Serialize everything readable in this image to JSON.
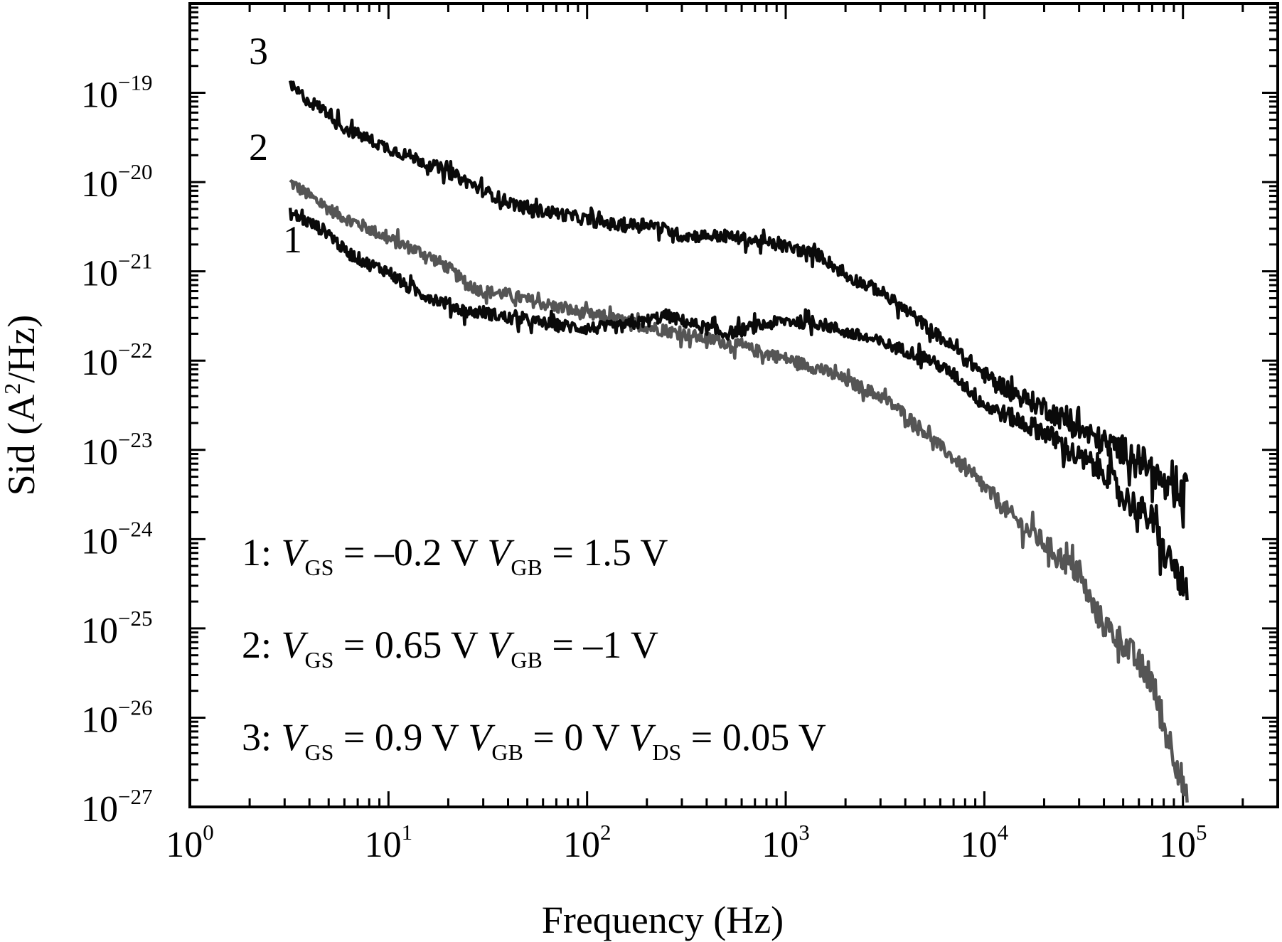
{
  "chart_data": {
    "type": "line",
    "xscale": "log",
    "yscale": "log",
    "xlabel": "Frequency (Hz)",
    "ylabel": {
      "base": "Sid (A",
      "sup": "2",
      "tail": "/Hz)"
    },
    "xlim": [
      1,
      300000
    ],
    "ylim": [
      1e-27,
      1e-18
    ],
    "xticks": [
      {
        "value": 1,
        "base": "10",
        "exp": "0"
      },
      {
        "value": 10,
        "base": "10",
        "exp": "1"
      },
      {
        "value": 100,
        "base": "10",
        "exp": "2"
      },
      {
        "value": 1000,
        "base": "10",
        "exp": "3"
      },
      {
        "value": 10000,
        "base": "10",
        "exp": "4"
      },
      {
        "value": 100000,
        "base": "10",
        "exp": "5"
      }
    ],
    "yticks": [
      {
        "value": 1e-19,
        "base": "10",
        "exp": "−19"
      },
      {
        "value": 1e-20,
        "base": "10",
        "exp": "−20"
      },
      {
        "value": 1e-21,
        "base": "10",
        "exp": "−21"
      },
      {
        "value": 1e-22,
        "base": "10",
        "exp": "−22"
      },
      {
        "value": 1e-23,
        "base": "10",
        "exp": "−23"
      },
      {
        "value": 1e-24,
        "base": "10",
        "exp": "−24"
      },
      {
        "value": 1e-25,
        "base": "10",
        "exp": "−25"
      },
      {
        "value": 1e-26,
        "base": "10",
        "exp": "−26"
      },
      {
        "value": 1e-27,
        "base": "10",
        "exp": "−27"
      }
    ],
    "grid": false,
    "series": [
      {
        "label": "1",
        "color": "#0a0a0a",
        "x": [
          3.2,
          4,
          5,
          6,
          8,
          10,
          12,
          15,
          20,
          25,
          30,
          40,
          50,
          70,
          100,
          150,
          200,
          250,
          300,
          400,
          500,
          700,
          1000,
          1500,
          2000,
          3000,
          5000,
          7000,
          10000,
          15000,
          20000,
          30000,
          40000,
          50000,
          60000,
          70000,
          80000,
          90000,
          100000,
          105000
        ],
        "y": [
          4.5e-21,
          3.5e-21,
          2.7e-21,
          1.7e-21,
          1.2e-21,
          1e-21,
          7e-22,
          5.5e-22,
          4.3e-22,
          3.5e-22,
          3.5e-22,
          3e-22,
          2.8e-22,
          2.5e-22,
          2.3e-22,
          2.4e-22,
          2.8e-22,
          3.2e-22,
          2.8e-22,
          2.3e-22,
          2e-22,
          2.4e-22,
          2.8e-22,
          2.6e-22,
          2.1e-22,
          1.6e-22,
          1.1e-22,
          7e-23,
          3.2e-23,
          2.1e-23,
          1.6e-23,
          8e-24,
          6e-24,
          3e-24,
          2.2e-24,
          1.6e-24,
          7e-25,
          5e-25,
          3e-25,
          2.2e-25
        ]
      },
      {
        "label": "2",
        "color": "#555555",
        "x": [
          3.2,
          4,
          5,
          6,
          8,
          10,
          15,
          20,
          25,
          30,
          40,
          50,
          70,
          100,
          150,
          200,
          300,
          500,
          700,
          1000,
          1500,
          2000,
          3000,
          4000,
          5000,
          7000,
          10000,
          15000,
          20000,
          30000,
          35000,
          40000,
          50000,
          60000,
          70000,
          80000,
          90000,
          100000,
          105000
        ],
        "y": [
          1e-20,
          7e-21,
          5e-21,
          4e-21,
          3e-21,
          2.3e-21,
          1.6e-21,
          1.1e-21,
          7e-22,
          6e-22,
          5.5e-22,
          4.8e-22,
          4e-22,
          3.3e-22,
          2.8e-22,
          2.4e-22,
          2e-22,
          1.6e-22,
          1.3e-22,
          1.05e-22,
          8e-23,
          6e-23,
          4e-23,
          2.5e-23,
          1.6e-23,
          8e-24,
          3.8e-24,
          1.5e-24,
          9e-25,
          4e-25,
          1.8e-25,
          1.1e-25,
          7e-26,
          4e-26,
          2.5e-26,
          8e-27,
          4e-27,
          1.8e-27,
          1e-27
        ]
      },
      {
        "label": "3",
        "color": "#0a0a0a",
        "x": [
          3.2,
          4,
          5,
          6,
          8,
          10,
          15,
          20,
          25,
          30,
          40,
          50,
          70,
          100,
          150,
          200,
          300,
          500,
          700,
          1000,
          1500,
          2000,
          3000,
          5000,
          7000,
          10000,
          15000,
          20000,
          30000,
          40000,
          50000,
          60000,
          70000,
          80000,
          90000,
          100000,
          105000
        ],
        "y": [
          1.2e-19,
          8e-20,
          6e-20,
          4e-20,
          3e-20,
          2.4e-20,
          1.7e-20,
          1.3e-20,
          1e-20,
          8e-21,
          6e-21,
          5e-21,
          4.5e-21,
          3.8e-21,
          3.2e-21,
          3.5e-21,
          2.5e-21,
          2.5e-21,
          2.2e-21,
          1.9e-21,
          1.5e-21,
          9e-22,
          6e-22,
          2.5e-22,
          1.4e-22,
          7e-23,
          4e-23,
          3e-23,
          1.7e-23,
          1.2e-23,
          1e-23,
          8e-24,
          6e-24,
          4e-24,
          2.8e-24,
          3e-24,
          5e-24
        ]
      }
    ],
    "legend": {
      "placement": "bottom-left",
      "lines": [
        {
          "prefix": "1:",
          "items": [
            {
              "sym": "V",
              "sub": "GS",
              "val": " = –0.2 V"
            },
            {
              "sym": "V",
              "sub": "GB",
              "val": " = 1.5 V"
            }
          ]
        },
        {
          "prefix": "2:",
          "items": [
            {
              "sym": "V",
              "sub": "GS",
              "val": " = 0.65 V"
            },
            {
              "sym": "V",
              "sub": "GB",
              "val": " = –1 V"
            }
          ]
        },
        {
          "prefix": "3:",
          "items": [
            {
              "sym": "V",
              "sub": "GS",
              "val": " = 0.9 V"
            },
            {
              "sym": "V",
              "sub": "GB",
              "val": " = 0 V"
            },
            {
              "sym": "V",
              "sub": "DS",
              "val": " = 0.05 V"
            }
          ]
        }
      ]
    }
  }
}
